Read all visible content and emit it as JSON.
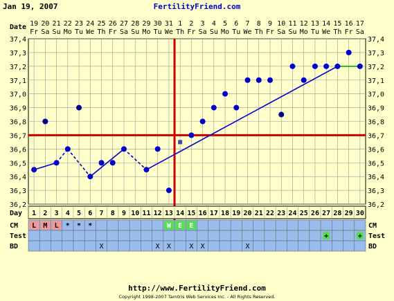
{
  "header": {
    "date": "Jan 19, 2007",
    "brand": "FertilityFriend.com"
  },
  "footer": {
    "url": "http://www.FertilityFriend.com",
    "copyright": "Copyright 1998-2007 Tamtris Web Services Inc. - All Rights Reserved."
  },
  "colors": {
    "background": "#ffffcc",
    "line": "#0000cc",
    "coverline": "#cc0000",
    "projection": "#00aa00",
    "row_fill": "#99bbee"
  },
  "chart_data": {
    "type": "line",
    "title": "",
    "row_labels": {
      "date": "Date",
      "day": "Day",
      "cm": "CM",
      "test": "Test",
      "bd": "BD"
    },
    "dates": [
      "19",
      "20",
      "21",
      "22",
      "23",
      "24",
      "25",
      "26",
      "27",
      "28",
      "29",
      "30",
      "31",
      "1",
      "2",
      "3",
      "4",
      "5",
      "6",
      "7",
      "8",
      "9",
      "10",
      "11",
      "12",
      "13",
      "14",
      "15",
      "16",
      "17"
    ],
    "weekdays": [
      "Fr",
      "Sa",
      "Su",
      "Mo",
      "Tu",
      "We",
      "Th",
      "Fr",
      "Sa",
      "Su",
      "Mo",
      "Tu",
      "We",
      "Th",
      "Fr",
      "Sa",
      "Su",
      "Mo",
      "Tu",
      "We",
      "Th",
      "Fr",
      "Sa",
      "Su",
      "Mo",
      "Tu",
      "We",
      "Th",
      "Fr",
      "Sa"
    ],
    "days": [
      1,
      2,
      3,
      4,
      5,
      6,
      7,
      8,
      9,
      10,
      11,
      12,
      13,
      14,
      15,
      16,
      17,
      18,
      19,
      20,
      21,
      22,
      23,
      24,
      25,
      26,
      27,
      28,
      29,
      30
    ],
    "temperatures": [
      36.45,
      36.8,
      36.5,
      36.6,
      36.9,
      36.4,
      36.5,
      36.5,
      36.6,
      null,
      36.45,
      36.6,
      36.3,
      36.65,
      36.7,
      36.8,
      36.9,
      37.0,
      36.9,
      37.1,
      37.1,
      37.1,
      36.85,
      37.2,
      37.1,
      37.2,
      37.2,
      37.2,
      37.3,
      37.2
    ],
    "segments": [
      {
        "from": 1,
        "to": 3,
        "style": "solid"
      },
      {
        "from": 3,
        "to": 4,
        "style": "dashed"
      },
      {
        "from": 4,
        "to": 6,
        "style": "dashed"
      },
      {
        "from": 6,
        "to": 9,
        "style": "solid"
      },
      {
        "from": 9,
        "to": 11,
        "style": "dashed"
      },
      {
        "from": 11,
        "to": 28,
        "style": "solid"
      },
      {
        "from": 28,
        "to": 30,
        "style": "projection"
      }
    ],
    "ylim": [
      36.2,
      37.4
    ],
    "yticks": [
      "36,2",
      "36,3",
      "36,4",
      "36,5",
      "36,6",
      "36,7",
      "36,8",
      "36,9",
      "37,0",
      "37,1",
      "37,2",
      "37,3",
      "37,4"
    ],
    "coverline": 36.7,
    "ovulation_day": 14,
    "cm": {
      "1": "L",
      "2": "M",
      "3": "L",
      "4": "*",
      "5": "*",
      "6": "*",
      "13": "W",
      "14": "E",
      "15": "E"
    },
    "test": {
      "27": "+",
      "30": "+"
    },
    "bd": [
      7,
      12,
      13,
      15,
      16,
      20
    ]
  }
}
